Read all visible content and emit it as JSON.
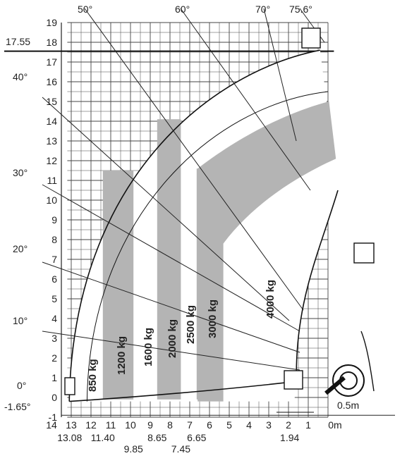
{
  "chart_data": {
    "type": "load_chart",
    "y_ticks": [
      "19",
      "18",
      "17",
      "16",
      "15",
      "14",
      "13",
      "12",
      "11",
      "10",
      "9",
      "8",
      "7",
      "6",
      "5",
      "4",
      "3",
      "2",
      "1",
      "0",
      "-1"
    ],
    "x_ticks": [
      "14",
      "13",
      "12",
      "11",
      "10",
      "9",
      "8",
      "7",
      "6",
      "5",
      "4",
      "3",
      "2",
      "1",
      "0m"
    ],
    "x_sublabels": [
      "13.08",
      "11.40",
      "9.85",
      "8.65",
      "7.45",
      "6.65",
      "1.94"
    ],
    "angles_top": [
      "50°",
      "60°",
      "70°",
      "75.6°"
    ],
    "angles_left": [
      "40°",
      "30°",
      "20°",
      "10°",
      "0°"
    ],
    "height_marks": [
      "17.55",
      "-1.65°"
    ],
    "zones": [
      {
        "label": "850 kg",
        "load_kg": 850
      },
      {
        "label": "1200 kg",
        "load_kg": 1200
      },
      {
        "label": "1600 kg",
        "load_kg": 1600
      },
      {
        "label": "2000 kg",
        "load_kg": 2000
      },
      {
        "label": "2500 kg",
        "load_kg": 2500
      },
      {
        "label": "3000 kg",
        "load_kg": 3000
      },
      {
        "label": "4000 kg",
        "load_kg": 4000
      }
    ],
    "offset_label": "0.5m",
    "max_height_m": 17.55,
    "max_reach_m": 13.08,
    "boom_angle_max_deg": 75.6,
    "boom_angle_min_deg": -1.65
  }
}
